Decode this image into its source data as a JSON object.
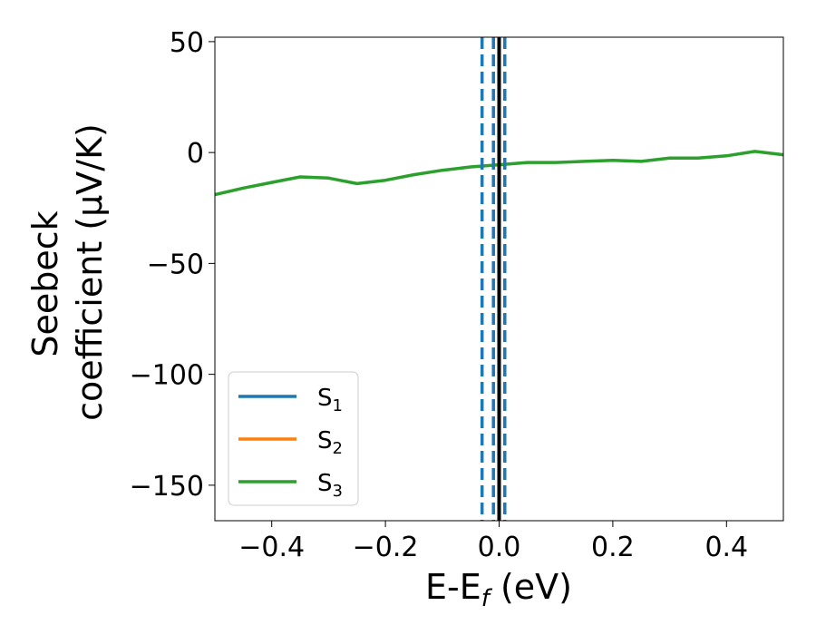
{
  "chart_data": {
    "type": "line",
    "xlabel": {
      "main": "E-E",
      "sub": "f",
      "unit": " (eV)"
    },
    "ylabel": {
      "line1": "Seebeck",
      "line2": "coefficient  (μV/K)"
    },
    "xlim": [
      -0.5,
      0.5
    ],
    "ylim": [
      -166,
      52
    ],
    "x_ticks": [
      -0.4,
      -0.2,
      0.0,
      0.2,
      0.4
    ],
    "x_tick_labels": [
      "−0.4",
      "−0.2",
      "0.0",
      "0.2",
      "0.4"
    ],
    "y_ticks": [
      50,
      0,
      -50,
      -100,
      -150
    ],
    "y_tick_labels": [
      "50",
      "0",
      "−50",
      "−100",
      "−150"
    ],
    "grid": false,
    "legend_position": "bottom-left",
    "series": [
      {
        "name": "S",
        "sub": "1",
        "color": "#1f77b4",
        "x": [],
        "y": []
      },
      {
        "name": "S",
        "sub": "2",
        "color": "#ff7f0e",
        "x": [],
        "y": []
      },
      {
        "name": "S",
        "sub": "3",
        "color": "#2ca02c",
        "x": [
          -0.5,
          -0.45,
          -0.4,
          -0.35,
          -0.3,
          -0.25,
          -0.2,
          -0.15,
          -0.1,
          -0.05,
          0.0,
          0.05,
          0.1,
          0.15,
          0.2,
          0.25,
          0.3,
          0.35,
          0.4,
          0.45,
          0.5
        ],
        "y": [
          -19,
          -16,
          -13.5,
          -11,
          -11.5,
          -14,
          -12.5,
          -10,
          -8,
          -6.5,
          -5.5,
          -4.5,
          -4.5,
          -4,
          -3.5,
          -4,
          -2.5,
          -2.5,
          -1.5,
          0.5,
          -1
        ]
      }
    ],
    "vlines": [
      {
        "x": 0.0,
        "color": "#000000",
        "style": "solid"
      },
      {
        "x": -0.03,
        "color": "#1f77b4",
        "style": "dashed"
      },
      {
        "x": -0.01,
        "color": "#1f77b4",
        "style": "dashed"
      },
      {
        "x": 0.01,
        "color": "#1f77b4",
        "style": "dashed"
      }
    ]
  }
}
